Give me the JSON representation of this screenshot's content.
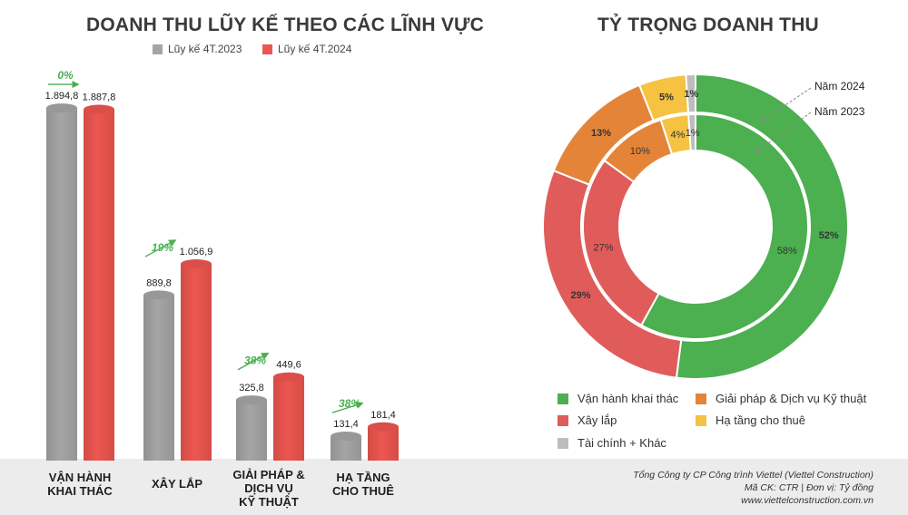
{
  "chart_data": [
    {
      "type": "bar",
      "title": "DOANH THU LŨY KẾ THEO CÁC LĨNH VỰC",
      "categories": [
        [
          "VẬN HÀNH",
          "KHAI THÁC"
        ],
        [
          "XÂY LẮP"
        ],
        [
          "GIẢI PHÁP &",
          "DỊCH VỤ",
          "KỸ THUẬT"
        ],
        [
          "HẠ TẦNG",
          "CHO THUÊ"
        ]
      ],
      "series": [
        {
          "name": "Lũy kế 4T.2023",
          "color": "#a5a5a5",
          "values": [
            1894.8,
            889.8,
            325.8,
            131.4
          ],
          "labels": [
            "1.894,8",
            "889,8",
            "325,8",
            "131,4"
          ]
        },
        {
          "name": "Lũy kế 4T.2024",
          "color": "#ed5650",
          "values": [
            1887.8,
            1056.9,
            449.6,
            181.4
          ],
          "labels": [
            "1.887,8",
            "1.056,9",
            "449,6",
            "181,4"
          ]
        }
      ],
      "growth": [
        "0%",
        "19%",
        "38%",
        "38%"
      ],
      "growth_color": "#4caf50",
      "ylim": [
        0,
        1900
      ],
      "grid": false
    },
    {
      "type": "pie",
      "title": "TỶ TRỌNG DOANH THU",
      "categories": [
        "Vận hành khai thác",
        "Xây lắp",
        "Giải pháp & Dịch vụ Kỹ thuật",
        "Hạ tầng cho thuê",
        "Tài chính + Khác"
      ],
      "colors": [
        "#4caf50",
        "#e05c5a",
        "#e48439",
        "#f5c242",
        "#bdbdbd"
      ],
      "series": [
        {
          "name": "Năm 2024",
          "values": [
            52,
            29,
            13,
            5,
            1
          ],
          "labels": [
            "52%",
            "29%",
            "13%",
            "5%",
            "1%"
          ]
        },
        {
          "name": "Năm 2023",
          "values": [
            58,
            27,
            10,
            4,
            1
          ],
          "labels": [
            "58%",
            "27%",
            "10%",
            "4%",
            "1%"
          ]
        }
      ],
      "legend": "bottom"
    }
  ],
  "footer": {
    "company": "Tổng Công ty CP Công trình Viettel (Viettel Construction)",
    "code": "Mã CK: CTR  |  Đơn vị: Tỷ đồng",
    "website": "www.viettelconstruction.com.vn"
  }
}
